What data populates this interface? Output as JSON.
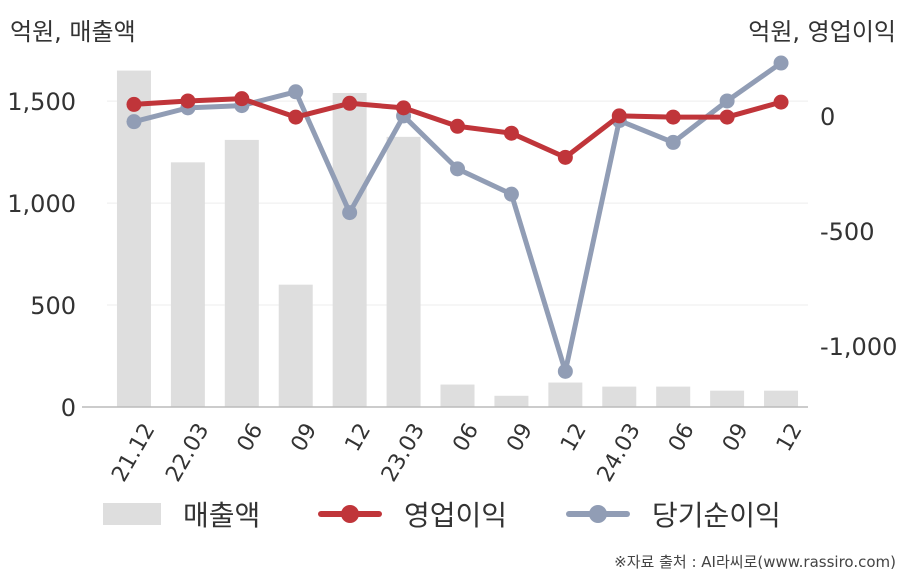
{
  "header": {
    "left_unit": "억원, 매출액",
    "right_unit": "억원, 영업이익"
  },
  "source": "※자료 출처 : AI라씨로(www.rassiro.com)",
  "colors": {
    "bar": "#dedede",
    "operating_profit": "#c0353a",
    "net_income": "#919db5",
    "axis": "#bbbbbb",
    "grid": "#eeeeee"
  },
  "legend": {
    "revenue": "매출액",
    "operating_profit": "영업이익",
    "net_income": "당기순이익"
  },
  "chart_data": {
    "type": "bar+line",
    "categories": [
      "21.12",
      "22.03",
      "06",
      "09",
      "12",
      "23.03",
      "06",
      "09",
      "12",
      "24.03",
      "06",
      "09",
      "12"
    ],
    "series": [
      {
        "name": "매출액",
        "type": "bar",
        "axis": "left",
        "values": [
          1650,
          1200,
          1310,
          600,
          1540,
          1325,
          110,
          55,
          120,
          100,
          100,
          80,
          80
        ]
      },
      {
        "name": "영업이익",
        "type": "line",
        "axis": "right",
        "values": [
          50,
          65,
          75,
          -5,
          55,
          35,
          -45,
          -75,
          -180,
          0,
          -5,
          -5,
          60
        ]
      },
      {
        "name": "당기순이익",
        "type": "line",
        "axis": "right",
        "values": [
          -25,
          35,
          45,
          105,
          -420,
          0,
          -230,
          -340,
          -1110,
          -20,
          -115,
          65,
          230
        ]
      }
    ],
    "left_axis": {
      "ticks": [
        0,
        500,
        1000,
        1500
      ],
      "tick_labels": [
        "0",
        "500",
        "1,000",
        "1,500"
      ],
      "range": [
        0,
        1800
      ]
    },
    "right_axis": {
      "ticks": [
        0,
        -500,
        -1000
      ],
      "tick_labels": [
        "0",
        "-500",
        "-1,000"
      ],
      "range": [
        -1265,
        330
      ]
    },
    "grid": true,
    "legend_position": "bottom"
  }
}
